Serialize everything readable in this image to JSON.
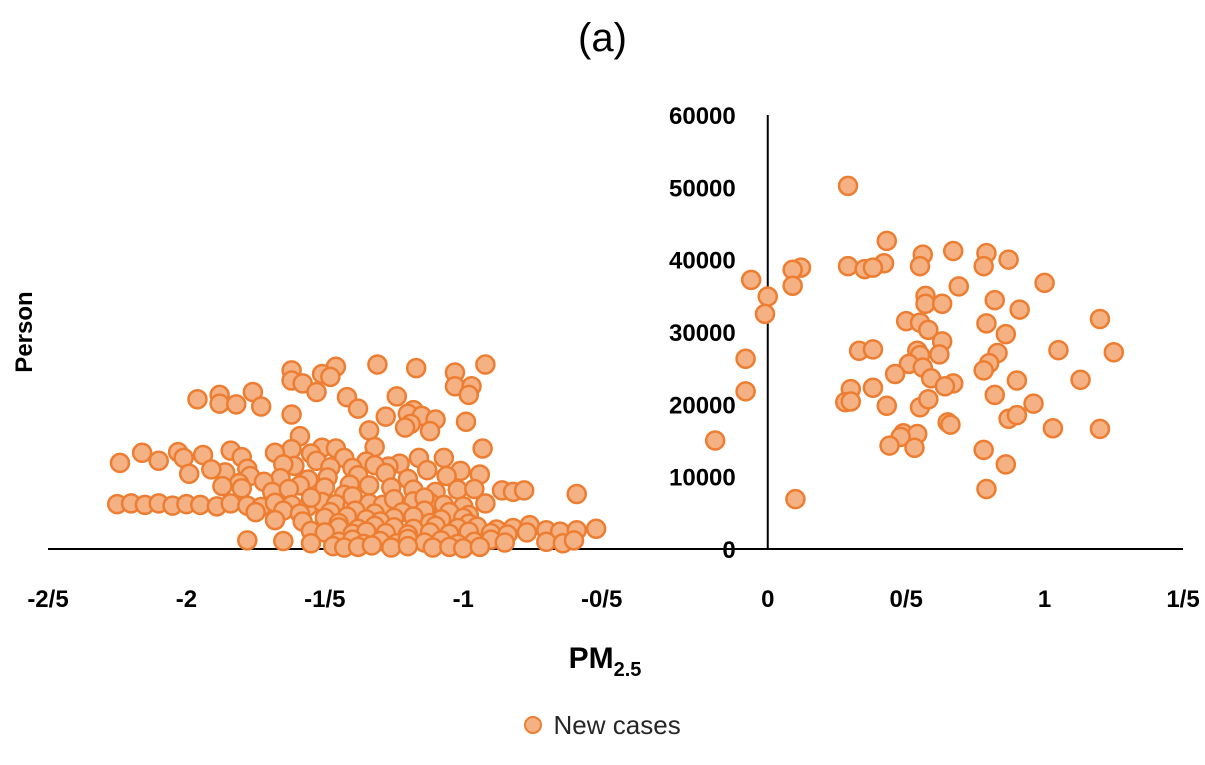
{
  "chart_data": {
    "type": "scatter",
    "title": "(a)",
    "xlabel_main": "PM",
    "xlabel_sub": "2.5",
    "ylabel": "Person",
    "xlim": [
      -2.6,
      1.5
    ],
    "ylim": [
      0,
      60000
    ],
    "x_ticks": [
      {
        "value": -2.6,
        "label": "-2/5"
      },
      {
        "value": -2.1,
        "label": "-2"
      },
      {
        "value": -1.6,
        "label": "-1/5"
      },
      {
        "value": -1.1,
        "label": "-1"
      },
      {
        "value": -0.6,
        "label": "-0/5"
      },
      {
        "value": 0,
        "label": "0"
      },
      {
        "value": 0.5,
        "label": "0/5"
      },
      {
        "value": 1,
        "label": "1"
      },
      {
        "value": 1.5,
        "label": "1/5"
      }
    ],
    "y_ticks": [
      {
        "value": 0,
        "label": "0"
      },
      {
        "value": 10000,
        "label": "10000"
      },
      {
        "value": 20000,
        "label": "20000"
      },
      {
        "value": 30000,
        "label": "30000"
      },
      {
        "value": 40000,
        "label": "40000"
      },
      {
        "value": 50000,
        "label": "50000"
      },
      {
        "value": 60000,
        "label": "60000"
      }
    ],
    "legend_position": "bottom",
    "grid": false,
    "marker_fill": "#F4B183",
    "marker_stroke": "#ED7D31",
    "series": [
      {
        "name": "New cases",
        "points": [
          [
            0.29,
            50200
          ],
          [
            0.43,
            42600
          ],
          [
            0.67,
            41200
          ],
          [
            0.79,
            40900
          ],
          [
            0.56,
            40700
          ],
          [
            0.87,
            40000
          ],
          [
            0.12,
            38900
          ],
          [
            0.29,
            39100
          ],
          [
            0.42,
            39500
          ],
          [
            0.35,
            38700
          ],
          [
            0.38,
            38900
          ],
          [
            0.55,
            39100
          ],
          [
            0.78,
            39100
          ],
          [
            -0.06,
            37200
          ],
          [
            0.09,
            38600
          ],
          [
            0.09,
            36400
          ],
          [
            0.69,
            36300
          ],
          [
            1.0,
            36800
          ],
          [
            0.0,
            34900
          ],
          [
            0.57,
            35000
          ],
          [
            0.57,
            33900
          ],
          [
            0.63,
            33900
          ],
          [
            0.82,
            34400
          ],
          [
            0.91,
            33100
          ],
          [
            -0.01,
            32500
          ],
          [
            0.5,
            31500
          ],
          [
            0.55,
            31300
          ],
          [
            0.79,
            31200
          ],
          [
            1.2,
            31800
          ],
          [
            0.58,
            30300
          ],
          [
            0.86,
            29700
          ],
          [
            0.63,
            28700
          ],
          [
            0.33,
            27400
          ],
          [
            0.38,
            27600
          ],
          [
            0.54,
            27400
          ],
          [
            0.55,
            26800
          ],
          [
            0.62,
            26900
          ],
          [
            0.83,
            27100
          ],
          [
            1.05,
            27500
          ],
          [
            1.25,
            27200
          ],
          [
            -0.08,
            26300
          ],
          [
            0.51,
            25600
          ],
          [
            0.8,
            25700
          ],
          [
            0.56,
            25100
          ],
          [
            0.46,
            24200
          ],
          [
            0.78,
            24700
          ],
          [
            0.59,
            23600
          ],
          [
            0.67,
            22900
          ],
          [
            0.9,
            23300
          ],
          [
            1.13,
            23400
          ],
          [
            0.64,
            22500
          ],
          [
            -0.08,
            21800
          ],
          [
            0.3,
            22100
          ],
          [
            0.38,
            22300
          ],
          [
            0.82,
            21300
          ],
          [
            0.28,
            20300
          ],
          [
            0.3,
            20400
          ],
          [
            0.43,
            19800
          ],
          [
            0.55,
            19600
          ],
          [
            0.58,
            20700
          ],
          [
            0.96,
            20100
          ],
          [
            0.87,
            18000
          ],
          [
            0.9,
            18500
          ],
          [
            0.65,
            17500
          ],
          [
            0.66,
            17200
          ],
          [
            1.03,
            16700
          ],
          [
            1.2,
            16600
          ],
          [
            0.49,
            16000
          ],
          [
            0.54,
            15900
          ],
          [
            -0.19,
            15000
          ],
          [
            0.48,
            15500
          ],
          [
            0.44,
            14300
          ],
          [
            0.53,
            14000
          ],
          [
            0.78,
            13700
          ],
          [
            0.86,
            11700
          ],
          [
            0.79,
            8300
          ],
          [
            0.1,
            6900
          ],
          [
            -1.41,
            25500
          ],
          [
            -1.56,
            25200
          ],
          [
            -1.72,
            24700
          ],
          [
            -1.61,
            24200
          ],
          [
            -1.13,
            24400
          ],
          [
            -1.02,
            25500
          ],
          [
            -1.58,
            23800
          ],
          [
            -1.27,
            25000
          ],
          [
            -1.72,
            23300
          ],
          [
            -1.68,
            22900
          ],
          [
            -1.13,
            22500
          ],
          [
            -1.07,
            22500
          ],
          [
            -1.86,
            21700
          ],
          [
            -1.98,
            21300
          ],
          [
            -1.63,
            21700
          ],
          [
            -1.52,
            21000
          ],
          [
            -1.34,
            21100
          ],
          [
            -1.08,
            21300
          ],
          [
            -2.06,
            20700
          ],
          [
            -1.98,
            20100
          ],
          [
            -1.92,
            20000
          ],
          [
            -1.83,
            19700
          ],
          [
            -1.48,
            19400
          ],
          [
            -1.28,
            19200
          ],
          [
            -1.3,
            18700
          ],
          [
            -1.25,
            18400
          ],
          [
            -1.38,
            18300
          ],
          [
            -1.72,
            18600
          ],
          [
            -1.2,
            17900
          ],
          [
            -1.09,
            17600
          ],
          [
            -1.29,
            17300
          ],
          [
            -1.31,
            16800
          ],
          [
            -1.22,
            16300
          ],
          [
            -1.44,
            16400
          ],
          [
            -1.69,
            15600
          ],
          [
            -1.61,
            14000
          ],
          [
            -1.42,
            14100
          ],
          [
            -1.56,
            13900
          ],
          [
            -1.65,
            13200
          ],
          [
            -1.72,
            13800
          ],
          [
            -1.78,
            13300
          ],
          [
            -1.94,
            13600
          ],
          [
            -2.13,
            13400
          ],
          [
            -2.04,
            13000
          ],
          [
            -1.9,
            12700
          ],
          [
            -2.11,
            12600
          ],
          [
            -2.2,
            12200
          ],
          [
            -2.34,
            11900
          ],
          [
            -2.26,
            13300
          ],
          [
            -1.17,
            12600
          ],
          [
            -1.26,
            12600
          ],
          [
            -1.33,
            11800
          ],
          [
            -1.37,
            11400
          ],
          [
            -1.45,
            12100
          ],
          [
            -1.53,
            12600
          ],
          [
            -1.63,
            12200
          ],
          [
            -1.71,
            11500
          ],
          [
            -1.75,
            11700
          ],
          [
            -1.58,
            11300
          ],
          [
            -1.5,
            11200
          ],
          [
            -1.42,
            11600
          ],
          [
            -1.23,
            10900
          ],
          [
            -1.11,
            10800
          ],
          [
            -1.04,
            10300
          ],
          [
            -1.03,
            13900
          ],
          [
            -1.88,
            11100
          ],
          [
            -1.96,
            10600
          ],
          [
            -2.01,
            11000
          ],
          [
            -2.09,
            10400
          ],
          [
            -1.87,
            10100
          ],
          [
            -1.76,
            9800
          ],
          [
            -1.66,
            9600
          ],
          [
            -1.59,
            9900
          ],
          [
            -1.48,
            10200
          ],
          [
            -1.38,
            10500
          ],
          [
            -1.3,
            9700
          ],
          [
            -1.16,
            10100
          ],
          [
            -1.82,
            9300
          ],
          [
            -1.91,
            9100
          ],
          [
            -1.97,
            8700
          ],
          [
            -1.69,
            8800
          ],
          [
            -1.6,
            8500
          ],
          [
            -1.51,
            8900
          ],
          [
            -1.44,
            8800
          ],
          [
            -1.36,
            8500
          ],
          [
            -1.28,
            8200
          ],
          [
            -1.2,
            7900
          ],
          [
            -1.12,
            8200
          ],
          [
            -1.06,
            8300
          ],
          [
            -0.96,
            8100
          ],
          [
            -0.92,
            7900
          ],
          [
            -0.88,
            8100
          ],
          [
            -0.69,
            7600
          ],
          [
            -1.9,
            8400
          ],
          [
            -1.79,
            7900
          ],
          [
            -1.73,
            8300
          ],
          [
            -1.53,
            7500
          ],
          [
            -2.35,
            6200
          ],
          [
            -2.3,
            6300
          ],
          [
            -2.25,
            6100
          ],
          [
            -2.2,
            6300
          ],
          [
            -2.15,
            6000
          ],
          [
            -2.1,
            6200
          ],
          [
            -2.05,
            6100
          ],
          [
            -1.99,
            5900
          ],
          [
            -1.94,
            6300
          ],
          [
            -1.88,
            6000
          ],
          [
            -1.83,
            5800
          ],
          [
            -1.78,
            6400
          ],
          [
            -1.72,
            6100
          ],
          [
            -1.66,
            5900
          ],
          [
            -1.61,
            6500
          ],
          [
            -1.56,
            6200
          ],
          [
            -1.5,
            5900
          ],
          [
            -1.44,
            6300
          ],
          [
            -1.39,
            6100
          ],
          [
            -1.33,
            5800
          ],
          [
            -1.28,
            6600
          ],
          [
            -1.22,
            6400
          ],
          [
            -1.17,
            6100
          ],
          [
            -1.1,
            5900
          ],
          [
            -1.02,
            6300
          ],
          [
            -1.65,
            7100
          ],
          [
            -1.5,
            7300
          ],
          [
            -1.35,
            6900
          ],
          [
            -1.24,
            7100
          ],
          [
            -1.85,
            5100
          ],
          [
            -1.75,
            5300
          ],
          [
            -1.69,
            4900
          ],
          [
            -1.58,
            5100
          ],
          [
            -1.49,
            5300
          ],
          [
            -1.42,
            4900
          ],
          [
            -1.32,
            5100
          ],
          [
            -1.24,
            5300
          ],
          [
            -1.15,
            5100
          ],
          [
            -1.08,
            4700
          ],
          [
            -1.6,
            4300
          ],
          [
            -1.52,
            4500
          ],
          [
            -1.45,
            4100
          ],
          [
            -1.35,
            4300
          ],
          [
            -1.28,
            4500
          ],
          [
            -1.18,
            4100
          ],
          [
            -1.1,
            4300
          ],
          [
            -1.78,
            4000
          ],
          [
            -1.68,
            3800
          ],
          [
            -1.55,
            3600
          ],
          [
            -1.4,
            3800
          ],
          [
            -1.22,
            3600
          ],
          [
            -1.08,
            3500
          ],
          [
            -1.55,
            3000
          ],
          [
            -1.48,
            2800
          ],
          [
            -1.42,
            3200
          ],
          [
            -1.35,
            3000
          ],
          [
            -1.28,
            2800
          ],
          [
            -1.2,
            3200
          ],
          [
            -1.12,
            2900
          ],
          [
            -1.05,
            3100
          ],
          [
            -0.98,
            2700
          ],
          [
            -0.92,
            2900
          ],
          [
            -0.86,
            3300
          ],
          [
            -0.8,
            2600
          ],
          [
            -0.75,
            2400
          ],
          [
            -0.69,
            2600
          ],
          [
            -0.62,
            2800
          ],
          [
            -1.65,
            2500
          ],
          [
            -1.6,
            2300
          ],
          [
            -1.5,
            2100
          ],
          [
            -1.45,
            2400
          ],
          [
            -1.38,
            2200
          ],
          [
            -1.3,
            2000
          ],
          [
            -1.22,
            2300
          ],
          [
            -1.15,
            2100
          ],
          [
            -1.08,
            2400
          ],
          [
            -1.0,
            2200
          ],
          [
            -0.94,
            2000
          ],
          [
            -0.87,
            2300
          ],
          [
            -1.88,
            1200
          ],
          [
            -1.75,
            1100
          ],
          [
            -1.65,
            800
          ],
          [
            -1.55,
            1000
          ],
          [
            -1.5,
            1300
          ],
          [
            -1.46,
            700
          ],
          [
            -1.4,
            1100
          ],
          [
            -1.34,
            800
          ],
          [
            -1.3,
            1400
          ],
          [
            -1.24,
            900
          ],
          [
            -1.18,
            1200
          ],
          [
            -1.12,
            700
          ],
          [
            -1.06,
            1000
          ],
          [
            -1.0,
            1300
          ],
          [
            -0.95,
            900
          ],
          [
            -0.8,
            1000
          ],
          [
            -0.74,
            800
          ],
          [
            -0.7,
            1200
          ],
          [
            -1.57,
            400
          ],
          [
            -1.53,
            200
          ],
          [
            -1.48,
            300
          ],
          [
            -1.43,
            500
          ],
          [
            -1.36,
            200
          ],
          [
            -1.3,
            400
          ],
          [
            -1.21,
            200
          ],
          [
            -1.15,
            300
          ],
          [
            -1.1,
            100
          ],
          [
            -1.04,
            300
          ]
        ]
      }
    ]
  }
}
